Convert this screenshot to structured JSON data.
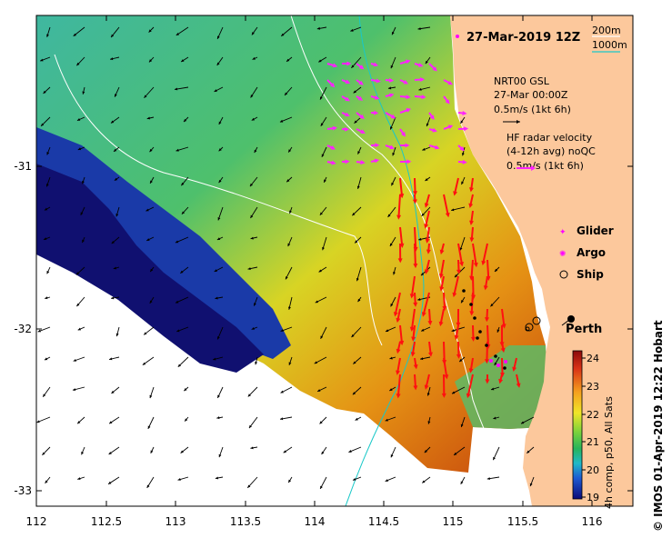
{
  "title": "27-Mar-2019 12Z",
  "depth_legend": {
    "c200": "200m",
    "c1000": "1000m",
    "c200_color": "#ffffff",
    "c1000_color": "#19c8c8"
  },
  "model_legend": {
    "line1": "NRT00 GSL",
    "line2": "27-Mar 00:00Z",
    "line3": "0.5m/s (1kt 6h)"
  },
  "radar_legend": {
    "line1": "HF radar velocity",
    "line2": "(4-12h avg) noQC",
    "line3": "0.5m/s (1kt 6h)",
    "color": "#ff22ff"
  },
  "platforms": [
    {
      "label": "Glider",
      "icon": "glider-icon",
      "color": "#ff00ff"
    },
    {
      "label": "Argo",
      "icon": "argo-icon",
      "color": "#ff00ff"
    },
    {
      "label": "Ship",
      "icon": "ship-icon",
      "color": "#000000"
    }
  ],
  "city": "Perth",
  "colorbar": {
    "label": "4h comp, p50, All Sats",
    "ticks": [
      "24",
      "23",
      "22",
      "21",
      "20",
      "19"
    ],
    "min": 19,
    "max": 24.3
  },
  "credit": "© IMOS 01-Apr-2019 12:22 Hobart",
  "axes": {
    "lon_ticks": [
      "112",
      "112.5",
      "113",
      "113.5",
      "114",
      "114.5",
      "115",
      "115.5",
      "116"
    ],
    "lat_ticks": [
      "-31",
      "-32",
      "-33"
    ]
  },
  "colors": {
    "land": "#fcc89c",
    "nodata": "#ffffff",
    "model_arrow": "#000000",
    "radar_arrow": "#ff0000"
  }
}
